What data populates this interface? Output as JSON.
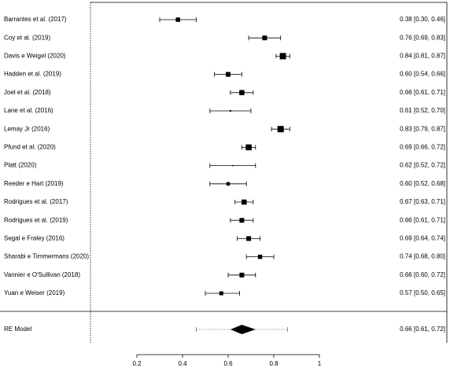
{
  "chart_data": {
    "type": "forest",
    "categories": [
      "Barrantes et al. (2017)",
      "Coy et al. (2019)",
      "Davis e Weigel (2020)",
      "Hadden et al. (2019)",
      "Joel et al. (2018)",
      "Lane et al. (2016)",
      "Lemay Jr (2016)",
      "Pfund et al. (2020)",
      "Platt (2020)",
      "Reeder e Hart (2019)",
      "Rodrigues et al. (2017)",
      "Rodrigues et al. (2019)",
      "Segal e Fraley (2016)",
      "Sharabi e Timmermans (2020)",
      "Vannier e O'Sullivan (2018)",
      "Yuan e Weiser (2019)"
    ],
    "values": [
      0.38,
      0.76,
      0.84,
      0.6,
      0.66,
      0.61,
      0.83,
      0.69,
      0.62,
      0.6,
      0.67,
      0.66,
      0.69,
      0.74,
      0.66,
      0.57
    ],
    "lower": [
      0.3,
      0.69,
      0.81,
      0.54,
      0.61,
      0.52,
      0.79,
      0.66,
      0.52,
      0.52,
      0.63,
      0.61,
      0.64,
      0.68,
      0.6,
      0.5
    ],
    "upper": [
      0.46,
      0.83,
      0.87,
      0.66,
      0.71,
      0.7,
      0.87,
      0.72,
      0.72,
      0.68,
      0.71,
      0.71,
      0.74,
      0.8,
      0.72,
      0.65
    ],
    "weights": [
      5.5,
      6,
      8,
      6,
      6.5,
      2,
      8,
      7.5,
      1.5,
      4.5,
      6.5,
      6,
      6,
      5.5,
      6,
      5
    ],
    "value_labels": [
      "0.38 [0.30, 0.46]",
      "0.76 [0.69, 0.83]",
      "0.84 [0.81, 0.87]",
      "0.60 [0.54, 0.66]",
      "0.66 [0.61, 0.71]",
      "0.61 [0.52, 0.70]",
      "0.83 [0.79, 0.87]",
      "0.69 [0.66, 0.72]",
      "0.62 [0.52, 0.72]",
      "0.60 [0.52, 0.68]",
      "0.67 [0.63, 0.71]",
      "0.66 [0.61, 0.71]",
      "0.69 [0.64, 0.74]",
      "0.74 [0.68, 0.80]",
      "0.66 [0.60, 0.72]",
      "0.57 [0.50, 0.65]"
    ],
    "summary": {
      "name": "RE Model",
      "value": 0.66,
      "lower": 0.61,
      "upper": 0.72,
      "prediction_interval": [
        0.46,
        0.86
      ],
      "value_label": "0.66 [0.61, 0.72]"
    },
    "xlim": [
      0.2,
      1
    ],
    "xticks": [
      0.2,
      0.4,
      0.6,
      0.8,
      1
    ],
    "color": "#000000"
  }
}
